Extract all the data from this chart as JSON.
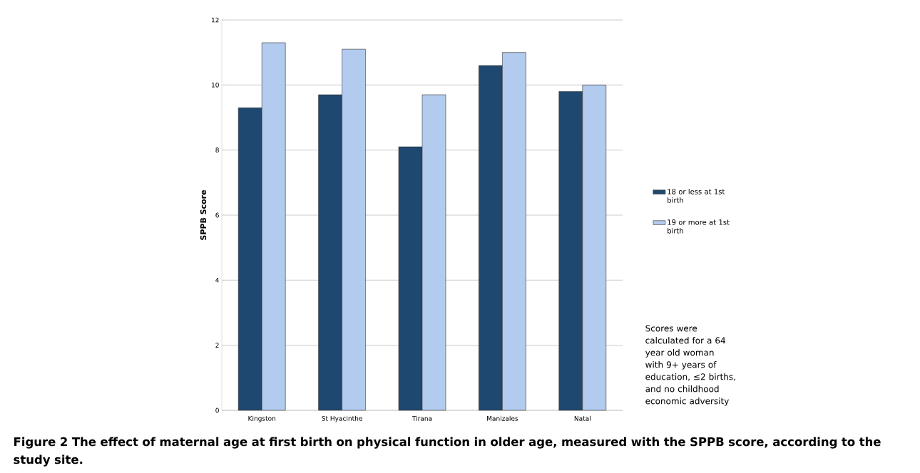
{
  "chart_data": {
    "type": "bar",
    "title": "Figure 2 The effect of maternal age at first birth on physical function in older age, measured with the SPPB score, according to the study site.",
    "ylabel": "SPPB Score",
    "categories": [
      "Kingston",
      "St Hyacinthe",
      "Tirana",
      "Manizales",
      "Natal"
    ],
    "series": [
      {
        "name": "18 or less at 1st birth",
        "color": "#1f4870",
        "values": [
          9.3,
          9.7,
          8.1,
          10.6,
          9.8
        ]
      },
      {
        "name": "19 or more at 1st birth",
        "color": "#b3cbee",
        "values": [
          11.3,
          11.1,
          9.7,
          11.0,
          10.0
        ]
      }
    ],
    "ylim": [
      0,
      12
    ],
    "yticks": [
      0,
      2,
      4,
      6,
      8,
      10,
      12
    ],
    "grid": "y",
    "legend": "right",
    "annotations": [
      "Scores were calculated for a 64 year old woman with 9+ years of education, ≤2 births, and no childhood economic adversity"
    ]
  }
}
